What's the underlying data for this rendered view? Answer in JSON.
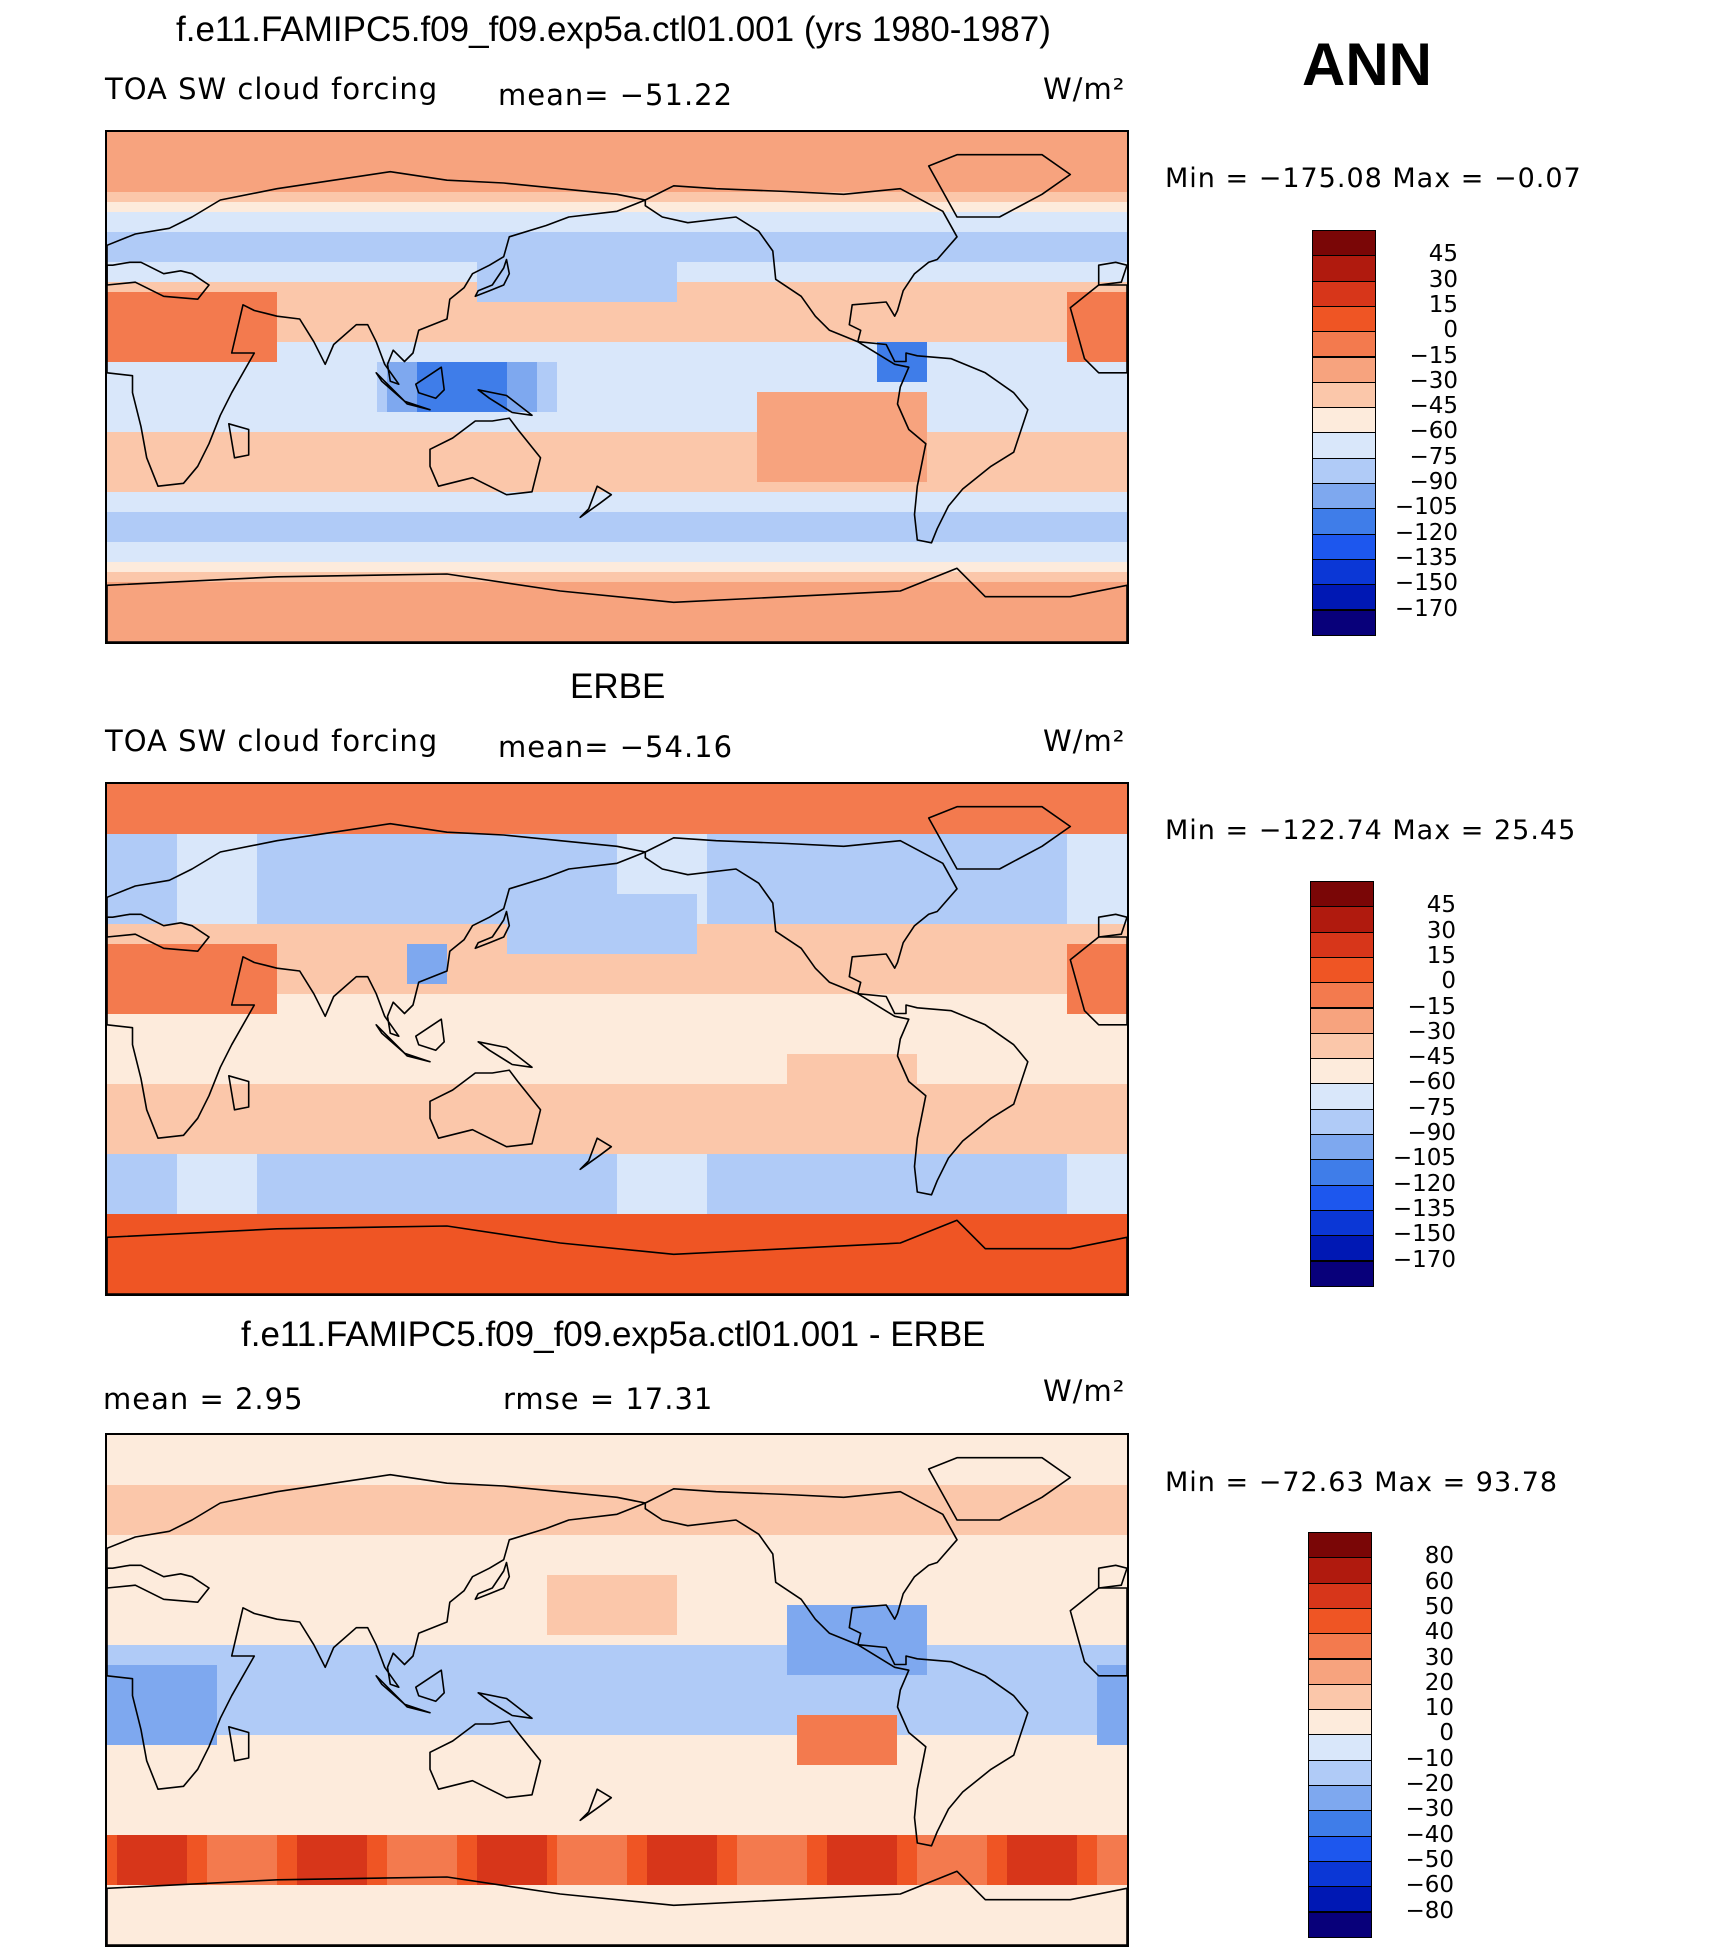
{
  "season_label": "ANN",
  "palette": [
    "#08007a",
    "#0018b4",
    "#0b37d6",
    "#1d57ee",
    "#3f7de9",
    "#7ea8ef",
    "#b0cbf7",
    "#d9e7fa",
    "#fdebdc",
    "#fbc7aa",
    "#f7a37e",
    "#f37a4e",
    "#ef5524",
    "#d7361a",
    "#b01a0e",
    "#7a0606"
  ],
  "panels": [
    {
      "title": "f.e11.FAMIPC5.f09_f09.exp5a.ctl01.001 (yrs 1980-1987)",
      "left_label": "TOA SW cloud forcing",
      "center_label": "mean=  −51.22",
      "units": "W/m²",
      "stats": "Min  =  −175.08  Max  =    −0.07",
      "levels": [
        "45",
        "30",
        "15",
        "0",
        "−15",
        "−30",
        "−45",
        "−60",
        "−75",
        "−90",
        "−105",
        "−120",
        "−135",
        "−150",
        "−170"
      ]
    },
    {
      "title": "ERBE",
      "left_label": "TOA SW cloud forcing",
      "center_label": "mean=  −54.16",
      "units": "W/m²",
      "stats": "Min  =  −122.74  Max  =    25.45",
      "levels": [
        "45",
        "30",
        "15",
        "0",
        "−15",
        "−30",
        "−45",
        "−60",
        "−75",
        "−90",
        "−105",
        "−120",
        "−135",
        "−150",
        "−170"
      ]
    },
    {
      "title": "f.e11.FAMIPC5.f09_f09.exp5a.ctl01.001 - ERBE",
      "left_label": "mean  =     2.95",
      "center_label": "rmse  =    17.31",
      "units": "W/m²",
      "stats": "Min  =  −72.63  Max  =   93.78",
      "levels": [
        "80",
        "60",
        "50",
        "40",
        "30",
        "20",
        "10",
        "0",
        "−10",
        "−20",
        "−30",
        "−40",
        "−50",
        "−60",
        "−80"
      ]
    }
  ],
  "chart_data": [
    {
      "type": "heatmap",
      "title": "f.e11.FAMIPC5.f09_f09.exp5a.ctl01.001 (yrs 1980-1987)",
      "variable": "TOA SW cloud forcing",
      "units": "W/m²",
      "mean": -51.22,
      "min": -175.08,
      "max": -0.07,
      "contour_levels": [
        -170,
        -150,
        -135,
        -120,
        -105,
        -90,
        -75,
        -60,
        -45,
        -30,
        -15,
        0,
        15,
        30,
        45
      ],
      "season": "ANN"
    },
    {
      "type": "heatmap",
      "title": "ERBE",
      "variable": "TOA SW cloud forcing",
      "units": "W/m²",
      "mean": -54.16,
      "min": -122.74,
      "max": 25.45,
      "contour_levels": [
        -170,
        -150,
        -135,
        -120,
        -105,
        -90,
        -75,
        -60,
        -45,
        -30,
        -15,
        0,
        15,
        30,
        45
      ],
      "season": "ANN"
    },
    {
      "type": "heatmap",
      "title": "f.e11.FAMIPC5.f09_f09.exp5a.ctl01.001 - ERBE",
      "units": "W/m²",
      "mean": 2.95,
      "rmse": 17.31,
      "min": -72.63,
      "max": 93.78,
      "contour_levels": [
        -80,
        -60,
        -50,
        -40,
        -30,
        -20,
        -10,
        0,
        10,
        20,
        30,
        40,
        50,
        60,
        80
      ],
      "season": "ANN"
    }
  ]
}
